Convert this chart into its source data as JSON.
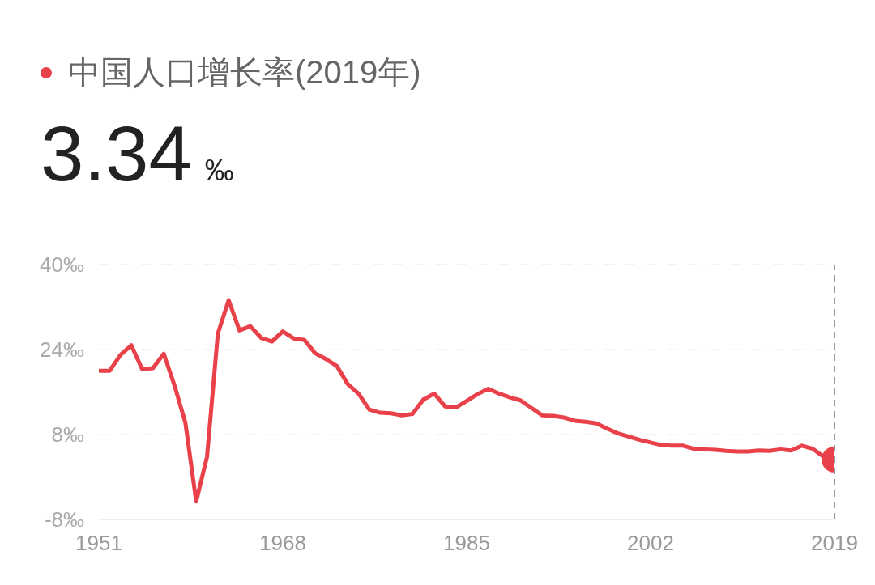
{
  "chart_data": {
    "type": "line",
    "title": "中国人口增长率(2019年)",
    "annotations": [
      "3.34 ‰"
    ],
    "x": [
      1951,
      1952,
      1953,
      1954,
      1955,
      1956,
      1957,
      1958,
      1959,
      1960,
      1961,
      1962,
      1963,
      1964,
      1965,
      1966,
      1967,
      1968,
      1969,
      1970,
      1971,
      1972,
      1973,
      1974,
      1975,
      1976,
      1977,
      1978,
      1979,
      1980,
      1981,
      1982,
      1983,
      1984,
      1985,
      1986,
      1987,
      1988,
      1989,
      1990,
      1991,
      1992,
      1993,
      1994,
      1995,
      1996,
      1997,
      1998,
      1999,
      2000,
      2001,
      2002,
      2003,
      2004,
      2005,
      2006,
      2007,
      2008,
      2009,
      2010,
      2011,
      2012,
      2013,
      2014,
      2015,
      2016,
      2017,
      2018,
      2019
    ],
    "series": [
      {
        "color": "#e8414a",
        "values": [
          20.0,
          20.0,
          23.0,
          24.8,
          20.3,
          20.5,
          23.2,
          17.2,
          10.2,
          -4.6,
          3.8,
          27.0,
          33.3,
          27.6,
          28.4,
          26.2,
          25.5,
          27.4,
          26.1,
          25.8,
          23.3,
          22.2,
          20.9,
          17.5,
          15.7,
          12.7,
          12.1,
          12.0,
          11.6,
          11.9,
          14.6,
          15.7,
          13.3,
          13.1,
          14.3,
          15.6,
          16.6,
          15.7,
          15.0,
          14.4,
          13.0,
          11.6,
          11.5,
          11.2,
          10.6,
          10.4,
          10.1,
          9.1,
          8.2,
          7.6,
          7.0,
          6.5,
          6.0,
          5.9,
          5.9,
          5.3,
          5.2,
          5.1,
          4.9,
          4.8,
          4.8,
          5.0,
          4.9,
          5.2,
          5.0,
          5.9,
          5.3,
          3.8,
          3.3
        ]
      },
      {
        "type": "scatter",
        "color": "#e8414a",
        "marker": "circle",
        "x": [
          2019
        ],
        "values": [
          3.3
        ]
      }
    ],
    "xlim": [
      1951,
      2019
    ],
    "xticks": [
      1951,
      1968,
      1985,
      2002,
      2019
    ],
    "ylim": [
      -8,
      40
    ],
    "yticks": [
      {
        "value": 40,
        "label": "40‰"
      },
      {
        "value": 24,
        "label": "24‰"
      },
      {
        "value": 8,
        "label": "8‰"
      },
      {
        "value": -8,
        "label": "-8‰"
      }
    ],
    "grid": "y",
    "marker": "none",
    "line_style": "solid",
    "ref_lines": [
      {
        "axis": "x",
        "value": 2019,
        "color": "#999999",
        "line_style": "dashed"
      }
    ]
  }
}
